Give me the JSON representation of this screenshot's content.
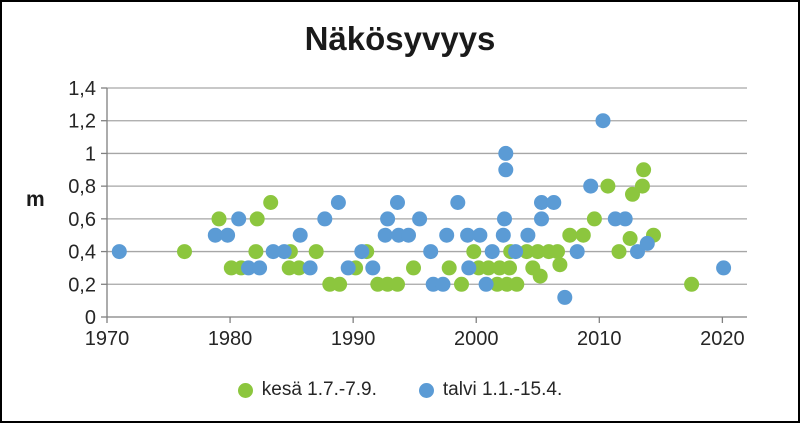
{
  "chart_data": {
    "type": "scatter",
    "title": "Näkösyvyys",
    "ylabel": "m",
    "xlabel": "",
    "xlim": [
      1970,
      2022
    ],
    "ylim": [
      0,
      1.4
    ],
    "grid": "horizontal-only",
    "legend_position": "bottom",
    "x_ticks": [
      1970,
      1980,
      1990,
      2000,
      2010,
      2020
    ],
    "x_tick_labels": [
      "1970",
      "1980",
      "1990",
      "2000",
      "2010",
      "2020"
    ],
    "y_ticks": [
      0,
      0.2,
      0.4,
      0.6,
      0.8,
      1.0,
      1.2,
      1.4
    ],
    "y_tick_labels": [
      "0",
      "0,2",
      "0,4",
      "0,6",
      "0,8",
      "1",
      "1,2",
      "1,4"
    ],
    "colors": {
      "grid": "#A6A6A6",
      "axis": "#808080",
      "tick_text": "#262626",
      "title_text": "#1a1a1a"
    },
    "series": [
      {
        "id": "kesa",
        "name": "kesä 1.7.-7.9.",
        "color": "#8CC63E",
        "points": [
          [
            1976.3,
            0.4
          ],
          [
            1979.1,
            0.6
          ],
          [
            1980.1,
            0.3
          ],
          [
            1980.9,
            0.3
          ],
          [
            1982.1,
            0.4
          ],
          [
            1982.2,
            0.6
          ],
          [
            1983.3,
            0.7
          ],
          [
            1984.8,
            0.3
          ],
          [
            1984.9,
            0.4
          ],
          [
            1985.6,
            0.3
          ],
          [
            1987.0,
            0.4
          ],
          [
            1988.1,
            0.2
          ],
          [
            1988.9,
            0.2
          ],
          [
            1990.2,
            0.3
          ],
          [
            1991.1,
            0.4
          ],
          [
            1992.0,
            0.2
          ],
          [
            1992.8,
            0.2
          ],
          [
            1993.6,
            0.2
          ],
          [
            1994.9,
            0.3
          ],
          [
            1997.8,
            0.3
          ],
          [
            1998.8,
            0.2
          ],
          [
            1999.8,
            0.4
          ],
          [
            2000.2,
            0.3
          ],
          [
            2001.0,
            0.3
          ],
          [
            2001.7,
            0.2
          ],
          [
            2001.9,
            0.3
          ],
          [
            2002.5,
            0.2
          ],
          [
            2002.7,
            0.3
          ],
          [
            2002.8,
            0.4
          ],
          [
            2003.3,
            0.2
          ],
          [
            2004.1,
            0.4
          ],
          [
            2004.6,
            0.3
          ],
          [
            2005.0,
            0.4
          ],
          [
            2005.2,
            0.25
          ],
          [
            2005.9,
            0.4
          ],
          [
            2006.6,
            0.4
          ],
          [
            2006.8,
            0.32
          ],
          [
            2007.6,
            0.5
          ],
          [
            2008.7,
            0.5
          ],
          [
            2009.6,
            0.6
          ],
          [
            2010.7,
            0.8
          ],
          [
            2011.6,
            0.4
          ],
          [
            2012.5,
            0.48
          ],
          [
            2012.7,
            0.75
          ],
          [
            2013.5,
            0.8
          ],
          [
            2013.6,
            0.9
          ],
          [
            2014.4,
            0.5
          ],
          [
            2017.5,
            0.2
          ]
        ]
      },
      {
        "id": "talvi",
        "name": "talvi 1.1.-15.4.",
        "color": "#5B9BD5",
        "points": [
          [
            1971.0,
            0.4
          ],
          [
            1978.8,
            0.5
          ],
          [
            1979.8,
            0.5
          ],
          [
            1980.7,
            0.6
          ],
          [
            1981.5,
            0.3
          ],
          [
            1982.4,
            0.3
          ],
          [
            1983.5,
            0.4
          ],
          [
            1984.4,
            0.4
          ],
          [
            1985.7,
            0.5
          ],
          [
            1986.5,
            0.3
          ],
          [
            1987.7,
            0.6
          ],
          [
            1988.8,
            0.7
          ],
          [
            1989.6,
            0.3
          ],
          [
            1990.7,
            0.4
          ],
          [
            1991.6,
            0.3
          ],
          [
            1992.6,
            0.5
          ],
          [
            1992.8,
            0.6
          ],
          [
            1993.6,
            0.7
          ],
          [
            1993.7,
            0.5
          ],
          [
            1994.5,
            0.5
          ],
          [
            1995.4,
            0.6
          ],
          [
            1996.3,
            0.4
          ],
          [
            1996.5,
            0.2
          ],
          [
            1997.3,
            0.2
          ],
          [
            1997.6,
            0.5
          ],
          [
            1998.5,
            0.7
          ],
          [
            1999.3,
            0.5
          ],
          [
            1999.4,
            0.3
          ],
          [
            2000.3,
            0.5
          ],
          [
            2000.8,
            0.2
          ],
          [
            2001.3,
            0.4
          ],
          [
            2002.2,
            0.5
          ],
          [
            2002.3,
            0.6
          ],
          [
            2002.4,
            0.9
          ],
          [
            2002.4,
            1.0
          ],
          [
            2003.2,
            0.4
          ],
          [
            2004.2,
            0.5
          ],
          [
            2005.3,
            0.6
          ],
          [
            2005.3,
            0.7
          ],
          [
            2006.3,
            0.7
          ],
          [
            2007.2,
            0.12
          ],
          [
            2008.2,
            0.4
          ],
          [
            2009.3,
            0.8
          ],
          [
            2010.3,
            1.2
          ],
          [
            2011.3,
            0.6
          ],
          [
            2012.1,
            0.6
          ],
          [
            2013.1,
            0.4
          ],
          [
            2013.9,
            0.45
          ],
          [
            2020.1,
            0.3
          ]
        ]
      }
    ]
  }
}
